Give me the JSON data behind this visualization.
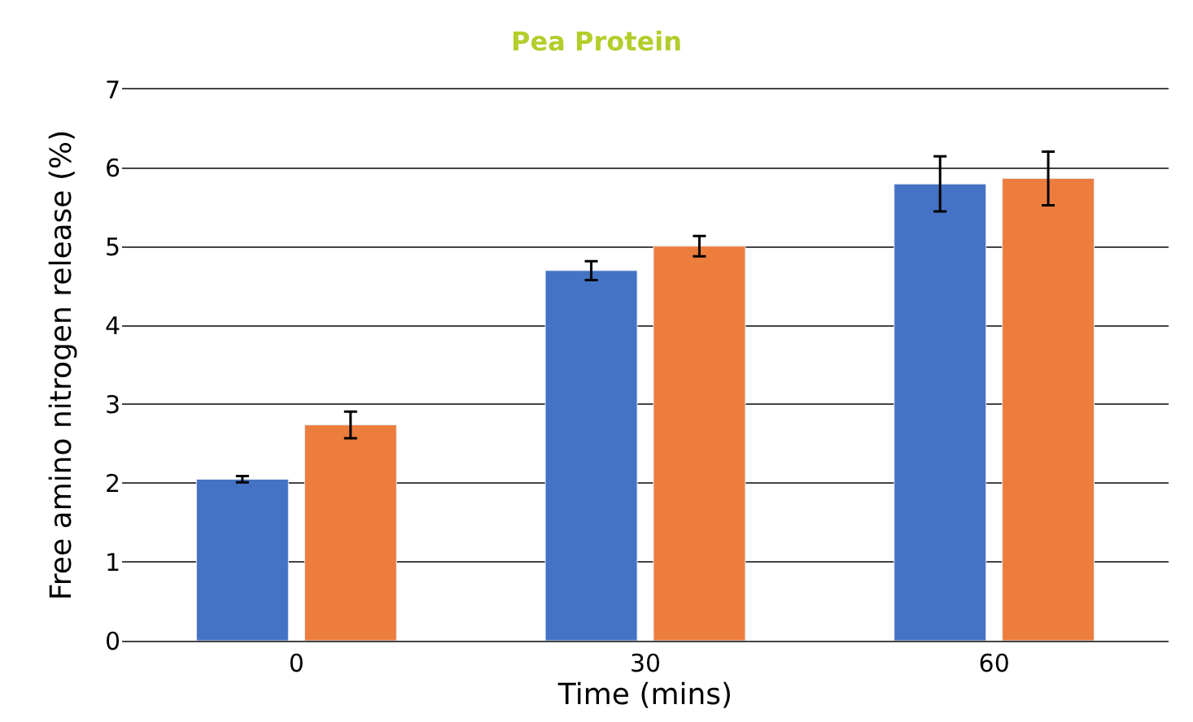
{
  "chart_data": {
    "type": "bar",
    "title": "Pea Protein",
    "xlabel": "Time (mins)",
    "ylabel": "Free amino nitrogen release (%)",
    "categories": [
      "0",
      "30",
      "60"
    ],
    "series": [
      {
        "color": "#4472c4",
        "values": [
          2.05,
          4.7,
          5.8
        ],
        "errors": [
          0.04,
          0.12,
          0.35
        ]
      },
      {
        "color": "#ed7d3c",
        "values": [
          2.74,
          5.01,
          5.87
        ],
        "errors": [
          0.17,
          0.13,
          0.34
        ]
      }
    ],
    "ylim": [
      0,
      7
    ],
    "yticks": [
      0,
      1,
      2,
      3,
      4,
      5,
      6,
      7
    ],
    "grid": "y"
  }
}
